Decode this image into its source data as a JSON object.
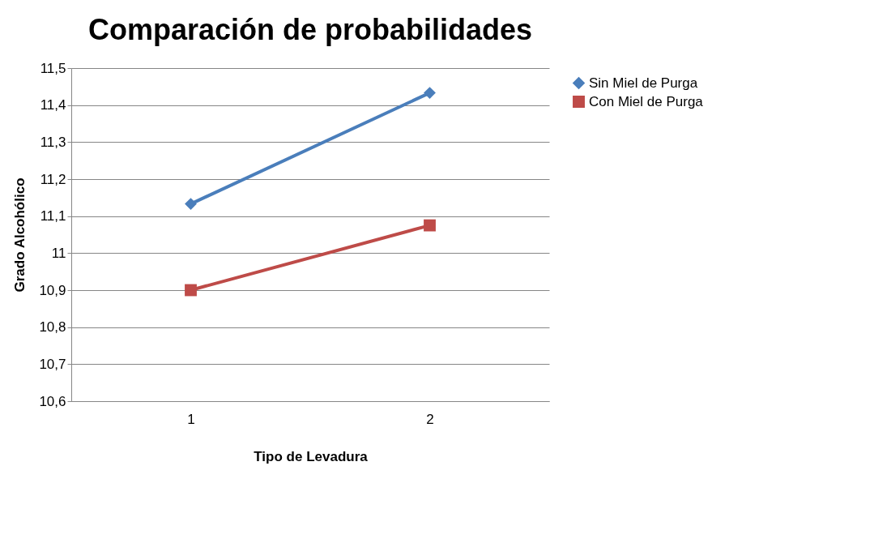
{
  "chart_data": {
    "type": "line",
    "title": "Comparación de probabilidades",
    "xlabel": "Tipo de Levadura",
    "ylabel": "Grado Alcohólico",
    "categories": [
      "1",
      "2"
    ],
    "series": [
      {
        "name": "Sin Miel de Purga",
        "color": "#4a7ebb",
        "values": [
          11.133,
          11.433
        ],
        "marker": "diamond"
      },
      {
        "name": "Con Miel de Purga",
        "color": "#be4b48",
        "values": [
          10.9,
          11.075
        ],
        "marker": "square"
      }
    ],
    "ylim": [
      10.6,
      11.5
    ],
    "yticks": [
      {
        "value": 10.6,
        "label": "10,6"
      },
      {
        "value": 10.7,
        "label": "10,7"
      },
      {
        "value": 10.8,
        "label": "10,8"
      },
      {
        "value": 10.9,
        "label": "10,9"
      },
      {
        "value": 11,
        "label": "11"
      },
      {
        "value": 11.1,
        "label": "11,1"
      },
      {
        "value": 11.2,
        "label": "11,2"
      },
      {
        "value": 11.3,
        "label": "11,3"
      },
      {
        "value": 11.4,
        "label": "11,4"
      },
      {
        "value": 11.5,
        "label": "11,5"
      }
    ],
    "grid": "y",
    "legend": "right",
    "line_style": "solid"
  }
}
